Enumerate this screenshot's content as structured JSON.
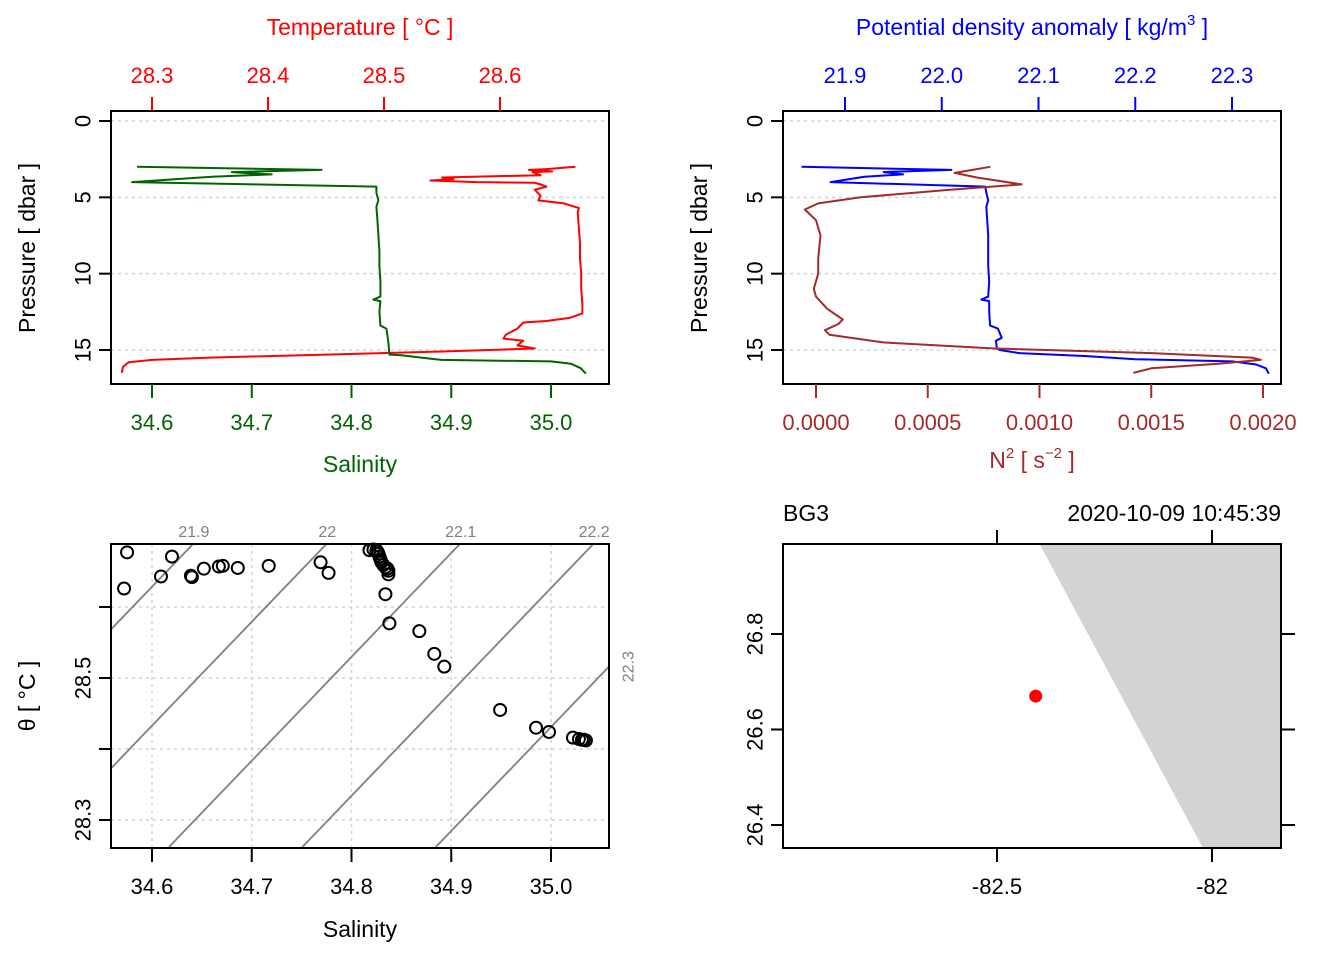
{
  "colors": {
    "temperature": "#ff0000",
    "salinity": "#006400",
    "density": "#0000ff",
    "n2": "#a52a2a",
    "grid": "#d3d3d3",
    "isopycnal": "#808080",
    "land": "#d3d3d3",
    "station": "#ff0000",
    "axis": "#000000"
  },
  "chart_data": [
    {
      "id": "ts-profile",
      "type": "line",
      "title": "",
      "ylabel": "Pressure [ dbar ]",
      "ylim": [
        0,
        16.6
      ],
      "y_reversed": true,
      "yticks": [
        0,
        5,
        10,
        15
      ],
      "ytick_labels": [
        "0",
        "5",
        "10",
        "15"
      ],
      "grid": true,
      "axes": {
        "top": {
          "label": "Temperature [ °C ]",
          "color": "temperature",
          "ticks": [
            28.3,
            28.4,
            28.5,
            28.6
          ],
          "tick_labels": [
            "28.3",
            "28.4",
            "28.5",
            "28.6"
          ]
        },
        "bottom": {
          "label": "Salinity",
          "color": "salinity",
          "ticks": [
            34.6,
            34.7,
            34.8,
            34.9,
            35.0
          ],
          "tick_labels": [
            "34.6",
            "34.7",
            "34.8",
            "34.9",
            "35.0"
          ]
        }
      },
      "series": [
        {
          "name": "Temperature",
          "axis": "top",
          "color": "temperature",
          "points": [
            [
              28.665,
              3.0
            ],
            [
              28.64,
              3.15
            ],
            [
              28.625,
              3.2
            ],
            [
              28.645,
              3.3
            ],
            [
              28.628,
              3.35
            ],
            [
              28.635,
              3.55
            ],
            [
              28.55,
              3.7
            ],
            [
              28.56,
              3.8
            ],
            [
              28.54,
              3.9
            ],
            [
              28.58,
              4.0
            ],
            [
              28.63,
              4.05
            ],
            [
              28.635,
              4.15
            ],
            [
              28.64,
              4.3
            ],
            [
              28.63,
              4.5
            ],
            [
              28.635,
              4.9
            ],
            [
              28.633,
              5.2
            ],
            [
              28.655,
              5.4
            ],
            [
              28.668,
              5.7
            ],
            [
              28.667,
              6.0
            ],
            [
              28.668,
              7.0
            ],
            [
              28.669,
              8.0
            ],
            [
              28.669,
              9.0
            ],
            [
              28.67,
              10.0
            ],
            [
              28.67,
              11.0
            ],
            [
              28.671,
              12.0
            ],
            [
              28.671,
              12.6
            ],
            [
              28.66,
              12.9
            ],
            [
              28.64,
              13.1
            ],
            [
              28.62,
              13.2
            ],
            [
              28.615,
              13.6
            ],
            [
              28.605,
              14.0
            ],
            [
              28.603,
              14.25
            ],
            [
              28.62,
              14.4
            ],
            [
              28.615,
              14.7
            ],
            [
              28.63,
              14.9
            ],
            [
              28.55,
              15.1
            ],
            [
              28.45,
              15.3
            ],
            [
              28.35,
              15.5
            ],
            [
              28.3,
              15.65
            ],
            [
              28.28,
              15.8
            ],
            [
              28.275,
              16.1
            ],
            [
              28.274,
              16.5
            ]
          ]
        },
        {
          "name": "Salinity",
          "axis": "bottom",
          "color": "salinity",
          "points": [
            [
              34.585,
              3.0
            ],
            [
              34.77,
              3.2
            ],
            [
              34.68,
              3.35
            ],
            [
              34.72,
              3.5
            ],
            [
              34.66,
              3.65
            ],
            [
              34.58,
              4.0
            ],
            [
              34.825,
              4.3
            ],
            [
              34.825,
              4.7
            ],
            [
              34.827,
              5.2
            ],
            [
              34.825,
              5.6
            ],
            [
              34.826,
              6.5
            ],
            [
              34.827,
              7.5
            ],
            [
              34.828,
              8.5
            ],
            [
              34.828,
              9.5
            ],
            [
              34.829,
              10.5
            ],
            [
              34.829,
              11.5
            ],
            [
              34.822,
              11.7
            ],
            [
              34.829,
              11.8
            ],
            [
              34.828,
              12.5
            ],
            [
              34.829,
              13.4
            ],
            [
              34.835,
              13.6
            ],
            [
              34.837,
              14.5
            ],
            [
              34.838,
              15.3
            ],
            [
              34.85,
              15.35
            ],
            [
              34.87,
              15.5
            ],
            [
              34.89,
              15.65
            ],
            [
              35.0,
              15.75
            ],
            [
              35.02,
              15.9
            ],
            [
              35.03,
              16.2
            ],
            [
              35.035,
              16.55
            ]
          ]
        }
      ]
    },
    {
      "id": "density-n2-profile",
      "type": "line",
      "title": "",
      "ylabel": "Pressure [ dbar ]",
      "ylim": [
        0,
        16.6
      ],
      "y_reversed": true,
      "yticks": [
        0,
        5,
        10,
        15
      ],
      "ytick_labels": [
        "0",
        "5",
        "10",
        "15"
      ],
      "grid": true,
      "axes": {
        "top": {
          "label": "Potential density anomaly [ kg/m",
          "label_sup": "3",
          "label_end": " ]",
          "color": "density",
          "ticks": [
            21.9,
            22.0,
            22.1,
            22.2,
            22.3
          ],
          "tick_labels": [
            "21.9",
            "22.0",
            "22.1",
            "22.2",
            "22.3"
          ]
        },
        "bottom": {
          "label": "N",
          "label_sup": "2",
          "label_end": " [ s",
          "label_sup2": "−2",
          "label_end2": " ]",
          "color": "n2",
          "ticks": [
            0.0,
            0.0005,
            0.001,
            0.0015,
            0.002
          ],
          "tick_labels": [
            "0.0000",
            "0.0005",
            "0.0010",
            "0.0015",
            "0.0020"
          ]
        }
      },
      "series": [
        {
          "name": "Potential density anomaly",
          "axis": "top",
          "color": "density",
          "points": [
            [
              21.855,
              3.0
            ],
            [
              22.01,
              3.2
            ],
            [
              21.94,
              3.35
            ],
            [
              21.96,
              3.5
            ],
            [
              21.92,
              3.65
            ],
            [
              21.885,
              4.0
            ],
            [
              22.045,
              4.3
            ],
            [
              22.046,
              4.7
            ],
            [
              22.048,
              5.2
            ],
            [
              22.046,
              5.6
            ],
            [
              22.047,
              6.5
            ],
            [
              22.048,
              7.5
            ],
            [
              22.048,
              8.5
            ],
            [
              22.048,
              9.5
            ],
            [
              22.049,
              10.5
            ],
            [
              22.048,
              11.5
            ],
            [
              22.041,
              11.7
            ],
            [
              22.049,
              11.8
            ],
            [
              22.049,
              12.5
            ],
            [
              22.05,
              13.4
            ],
            [
              22.058,
              13.6
            ],
            [
              22.062,
              14.2
            ],
            [
              22.056,
              14.4
            ],
            [
              22.057,
              14.9
            ],
            [
              22.06,
              15.0
            ],
            [
              22.08,
              15.2
            ],
            [
              22.15,
              15.4
            ],
            [
              22.2,
              15.6
            ],
            [
              22.3,
              15.75
            ],
            [
              22.325,
              15.95
            ],
            [
              22.335,
              16.2
            ],
            [
              22.338,
              16.55
            ]
          ]
        },
        {
          "name": "N2",
          "axis": "bottom",
          "color": "n2",
          "points": [
            [
              0.00078,
              3.0
            ],
            [
              0.0007,
              3.2
            ],
            [
              0.00062,
              3.4
            ],
            [
              0.00072,
              3.7
            ],
            [
              0.00092,
              4.15
            ],
            [
              0.0006,
              4.5
            ],
            [
              0.0002,
              5.0
            ],
            [
              1e-05,
              5.4
            ],
            [
              -5e-05,
              5.8
            ],
            [
              0.0,
              6.5
            ],
            [
              2e-05,
              7.5
            ],
            [
              1e-05,
              9.0
            ],
            [
              1e-05,
              10.0
            ],
            [
              -1e-05,
              11.0
            ],
            [
              0.0,
              11.5
            ],
            [
              5e-05,
              12.3
            ],
            [
              0.00012,
              13.0
            ],
            [
              0.0001,
              13.3
            ],
            [
              4e-05,
              13.7
            ],
            [
              6e-05,
              14.0
            ],
            [
              0.0003,
              14.5
            ],
            [
              0.0008,
              14.9
            ],
            [
              0.0015,
              15.2
            ],
            [
              0.00195,
              15.5
            ],
            [
              0.00199,
              15.65
            ],
            [
              0.0018,
              15.9
            ],
            [
              0.0015,
              16.2
            ],
            [
              0.00142,
              16.5
            ]
          ]
        }
      ]
    },
    {
      "id": "ts-diagram",
      "type": "scatter",
      "title": "",
      "xlabel": "Salinity",
      "ylabel_symbol": "θ",
      "ylabel_units": " [ °C ]",
      "xlim": [
        34.553,
        35.058
      ],
      "ylim": [
        28.262,
        28.69
      ],
      "xticks": [
        34.6,
        34.7,
        34.8,
        34.9,
        35.0
      ],
      "xtick_labels": [
        "34.6",
        "34.7",
        "34.8",
        "34.9",
        "35.0"
      ],
      "yticks": [
        28.3,
        28.4,
        28.5,
        28.6
      ],
      "ytick_labels": [
        "28.3",
        "",
        "28.5",
        ""
      ],
      "grid": true,
      "isopycnals": {
        "levels": [
          21.9,
          22.0,
          22.1,
          22.2,
          22.3
        ],
        "labels": [
          "21.9",
          "22",
          "22.1",
          "22.2",
          "22.3"
        ]
      },
      "points": [
        [
          34.575,
          28.677
        ],
        [
          34.62,
          28.671
        ],
        [
          34.572,
          28.626
        ],
        [
          34.609,
          28.643
        ],
        [
          34.639,
          28.644
        ],
        [
          34.64,
          28.642
        ],
        [
          34.652,
          28.654
        ],
        [
          34.667,
          28.657
        ],
        [
          34.671,
          28.658
        ],
        [
          34.686,
          28.655
        ],
        [
          34.717,
          28.658
        ],
        [
          34.769,
          28.663
        ],
        [
          34.777,
          28.648
        ],
        [
          34.818,
          28.68
        ],
        [
          34.822,
          28.681
        ],
        [
          34.825,
          28.68
        ],
        [
          34.826,
          28.678
        ],
        [
          34.827,
          28.675
        ],
        [
          34.828,
          28.671
        ],
        [
          34.829,
          28.667
        ],
        [
          34.83,
          28.663
        ],
        [
          34.832,
          28.659
        ],
        [
          34.834,
          28.656
        ],
        [
          34.836,
          28.654
        ],
        [
          34.837,
          28.651
        ],
        [
          34.837,
          28.646
        ],
        [
          34.834,
          28.618
        ],
        [
          34.838,
          28.577
        ],
        [
          34.868,
          28.566
        ],
        [
          34.883,
          28.534
        ],
        [
          34.893,
          28.516
        ],
        [
          34.949,
          28.455
        ],
        [
          34.985,
          28.43
        ],
        [
          34.998,
          28.424
        ],
        [
          35.022,
          28.416
        ],
        [
          35.028,
          28.414
        ],
        [
          35.031,
          28.413
        ],
        [
          35.033,
          28.413
        ],
        [
          35.035,
          28.412
        ]
      ]
    },
    {
      "id": "station-map",
      "type": "scatter",
      "title_left": "BG3",
      "title_right": "2020-10-09 10:45:39",
      "xlim": [
        -82.996,
        -81.84
      ],
      "ylim": [
        26.35,
        26.987
      ],
      "xticks": [
        -82.5,
        -82.0
      ],
      "xtick_labels": [
        "-82.5",
        "-82"
      ],
      "yticks": [
        26.4,
        26.6,
        26.8
      ],
      "ytick_labels": [
        "26.4",
        "26.6",
        "26.8"
      ],
      "grid": false,
      "land_polygon": [
        [
          -82.4,
          26.987
        ],
        [
          -81.84,
          26.987
        ],
        [
          -81.84,
          26.35
        ],
        [
          -82.02,
          26.35
        ]
      ],
      "station": {
        "lon": -82.41,
        "lat": 26.67
      }
    }
  ]
}
